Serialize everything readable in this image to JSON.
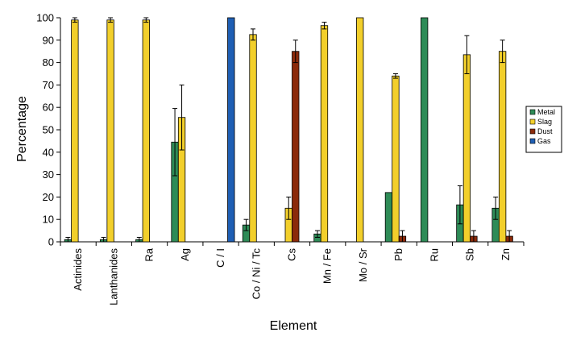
{
  "chart_data": {
    "type": "bar",
    "xlabel": "Element",
    "ylabel": "Percentage",
    "ylim": [
      0,
      100
    ],
    "yticks": [
      0,
      10,
      20,
      30,
      40,
      50,
      60,
      70,
      80,
      90,
      100
    ],
    "categories": [
      "Actinides",
      "Lanthanides",
      "Ra",
      "Ag",
      "C / I",
      "Co / Ni / Tc",
      "Cs",
      "Mn / Fe",
      "Mo / Sr",
      "Pb",
      "Ru",
      "Sb",
      "Zn"
    ],
    "series": [
      {
        "name": "Metal",
        "color": "#2e8b57",
        "values": [
          1,
          1,
          1,
          44.5,
          null,
          7.5,
          null,
          3.5,
          null,
          22,
          100,
          16.5,
          15
        ],
        "errors": [
          1,
          1,
          1,
          15,
          null,
          2.5,
          null,
          1.5,
          null,
          null,
          null,
          8.5,
          5
        ]
      },
      {
        "name": "Slag",
        "color": "#f2cf2b",
        "values": [
          99,
          99,
          99,
          55.5,
          null,
          92.5,
          15,
          96.5,
          100,
          74,
          null,
          83.5,
          85
        ],
        "errors": [
          1,
          1,
          1,
          14.5,
          null,
          2.5,
          5,
          1.5,
          null,
          1,
          null,
          8.5,
          5
        ]
      },
      {
        "name": "Dust",
        "color": "#8b2a0a",
        "values": [
          null,
          null,
          null,
          null,
          null,
          null,
          85,
          null,
          null,
          2.5,
          null,
          2.5,
          2.5
        ],
        "errors": [
          null,
          null,
          null,
          null,
          null,
          null,
          5,
          null,
          null,
          2.5,
          null,
          2.5,
          2.5
        ]
      },
      {
        "name": "Gas",
        "color": "#1f5fb4",
        "values": [
          null,
          null,
          null,
          null,
          100,
          null,
          null,
          null,
          null,
          null,
          null,
          null,
          null
        ],
        "errors": [
          null,
          null,
          null,
          null,
          null,
          null,
          null,
          null,
          null,
          null,
          null,
          null,
          null
        ]
      }
    ],
    "legend": {
      "position": "right",
      "items": [
        "Metal",
        "Slag",
        "Dust",
        "Gas"
      ]
    },
    "grid": false
  }
}
